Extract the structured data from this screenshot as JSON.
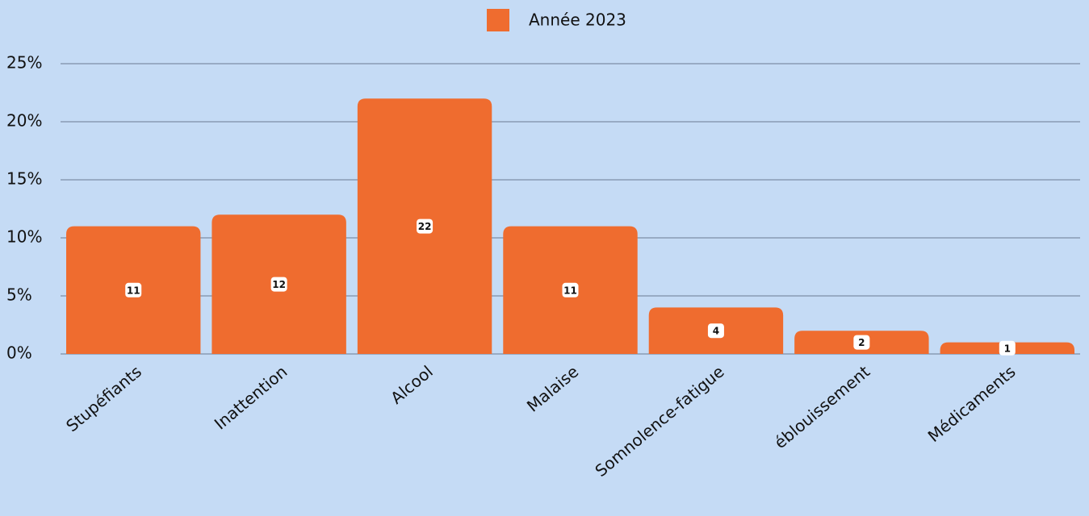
{
  "chart_data": {
    "type": "bar",
    "categories": [
      "Stupéfiants",
      "Inattention",
      "Alcool",
      "Malaise",
      "Somnolence-fatigue",
      "éblouissement",
      "Médicaments"
    ],
    "series": [
      {
        "name": "Année 2023",
        "color": "#ef6c2f",
        "values": [
          11,
          12,
          22,
          11,
          4,
          2,
          1
        ]
      }
    ],
    "ylim": [
      0,
      25
    ],
    "yticks": [
      {
        "value": 0,
        "label": "0%"
      },
      {
        "value": 5,
        "label": "5%"
      },
      {
        "value": 10,
        "label": "10%"
      },
      {
        "value": 15,
        "label": "15%"
      },
      {
        "value": 20,
        "label": "20%"
      },
      {
        "value": 25,
        "label": "25%"
      }
    ],
    "grid": true,
    "legend": "top"
  }
}
